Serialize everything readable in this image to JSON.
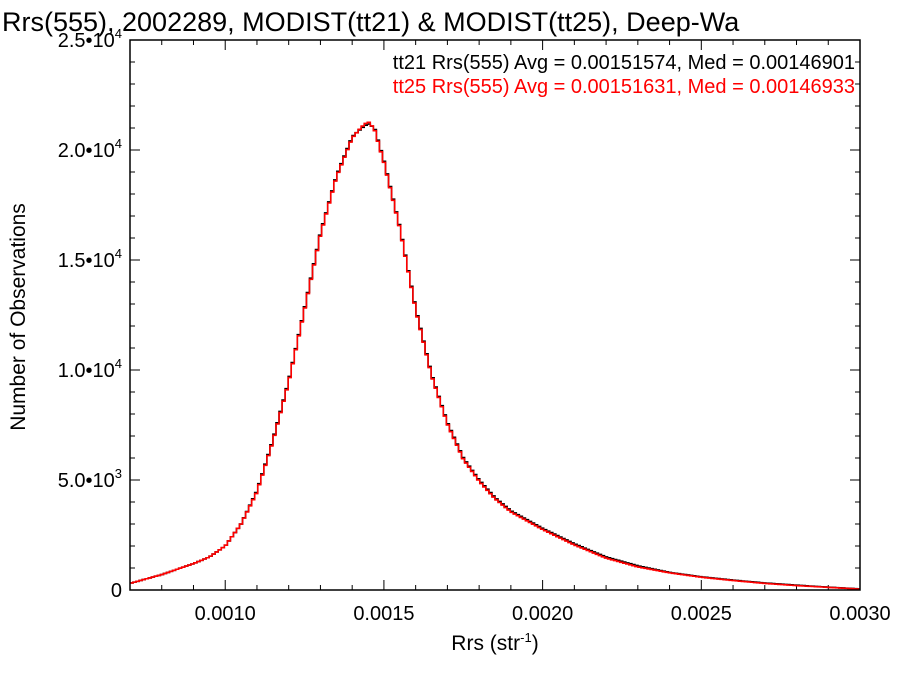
{
  "chart_data": {
    "type": "line",
    "title": "Rrs(555), 2002289, MODIST(tt21) & MODIST(tt25), Deep-Wa",
    "xlabel": "Rrs (str",
    "xlabel_exp": "-1",
    "xlabel_close": ")",
    "ylabel": "Number of Observations",
    "xlim": [
      0.0007,
      0.003
    ],
    "ylim": [
      0,
      25000
    ],
    "x_ticks": [
      {
        "value": 0.001,
        "label": "0.0010"
      },
      {
        "value": 0.0015,
        "label": "0.0015"
      },
      {
        "value": 0.002,
        "label": "0.0020"
      },
      {
        "value": 0.0025,
        "label": "0.0025"
      },
      {
        "value": 0.003,
        "label": "0.0030"
      }
    ],
    "y_ticks": [
      {
        "value": 0,
        "label": "0",
        "exp": ""
      },
      {
        "value": 5000,
        "label": "5.0•10",
        "exp": "3"
      },
      {
        "value": 10000,
        "label": "1.0•10",
        "exp": "4"
      },
      {
        "value": 15000,
        "label": "1.5•10",
        "exp": "4"
      },
      {
        "value": 20000,
        "label": "2.0•10",
        "exp": "4"
      },
      {
        "value": 25000,
        "label": "2.5•10",
        "exp": "4"
      }
    ],
    "grid": false,
    "legend_position": "top-right",
    "series": [
      {
        "name": "tt21",
        "legend_text": "tt21 Rrs(555) Avg = 0.00151574, Med = 0.00146901",
        "color": "#000000",
        "x": [
          0.0007,
          0.00075,
          0.0008,
          0.00085,
          0.0009,
          0.00095,
          0.001,
          0.00105,
          0.0011,
          0.00115,
          0.0012,
          0.00125,
          0.0013,
          0.00135,
          0.0014,
          0.00143,
          0.00145,
          0.00147,
          0.0015,
          0.00155,
          0.0016,
          0.00165,
          0.0017,
          0.00175,
          0.0018,
          0.00185,
          0.0019,
          0.00195,
          0.002,
          0.0021,
          0.0022,
          0.0023,
          0.0024,
          0.0025,
          0.0026,
          0.0027,
          0.0028,
          0.0029,
          0.003
        ],
        "y": [
          300,
          500,
          700,
          950,
          1200,
          1500,
          2000,
          3000,
          4500,
          6800,
          9500,
          12800,
          16200,
          18800,
          20600,
          21000,
          21200,
          21000,
          19500,
          16500,
          12800,
          9800,
          7600,
          6000,
          5000,
          4200,
          3600,
          3200,
          2800,
          2100,
          1500,
          1100,
          800,
          600,
          450,
          320,
          220,
          130,
          50
        ]
      },
      {
        "name": "tt25",
        "legend_text": "tt25 Rrs(555) Avg = 0.00151631, Med = 0.00146933",
        "color": "#ff0000",
        "x": [
          0.0007,
          0.00075,
          0.0008,
          0.00085,
          0.0009,
          0.00095,
          0.001,
          0.00105,
          0.0011,
          0.00115,
          0.0012,
          0.00125,
          0.0013,
          0.00135,
          0.0014,
          0.00143,
          0.00145,
          0.00147,
          0.0015,
          0.00155,
          0.0016,
          0.00165,
          0.0017,
          0.00175,
          0.0018,
          0.00185,
          0.0019,
          0.00195,
          0.002,
          0.0021,
          0.0022,
          0.0023,
          0.0024,
          0.0025,
          0.0026,
          0.0027,
          0.0028,
          0.0029,
          0.003
        ],
        "y": [
          300,
          500,
          700,
          950,
          1200,
          1500,
          2000,
          3000,
          4450,
          6750,
          9450,
          12750,
          16150,
          18750,
          20550,
          21050,
          21300,
          20950,
          19450,
          16450,
          12750,
          9750,
          7550,
          5950,
          4950,
          4150,
          3550,
          3150,
          2750,
          2050,
          1450,
          1050,
          780,
          580,
          430,
          300,
          200,
          120,
          40
        ]
      }
    ]
  }
}
